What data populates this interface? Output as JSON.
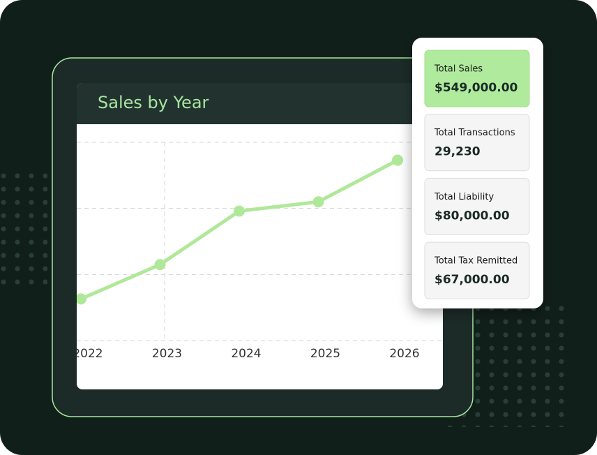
{
  "chart_data": {
    "type": "line",
    "title": "Sales by Year",
    "categories": [
      "2022",
      "2023",
      "2024",
      "2025",
      "2026"
    ],
    "values": [
      0.63,
      1.15,
      1.96,
      2.1,
      2.73
    ],
    "color": "#b0e89a",
    "ylim": [
      0,
      3
    ],
    "ygrid": [
      0,
      1,
      2,
      3
    ],
    "grid": true
  },
  "stats": [
    {
      "label": "Total Sales",
      "value": "$549,000.00"
    },
    {
      "label": "Total Transactions",
      "value": "29,230"
    },
    {
      "label": "Total Liability",
      "value": "$80,000.00"
    },
    {
      "label": "Total Tax Remitted",
      "value": "$67,000.00"
    }
  ]
}
